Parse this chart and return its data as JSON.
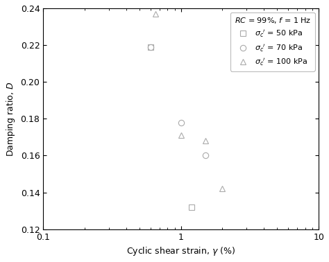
{
  "title": "",
  "xlabel": "Cyclic shear strain, $\\gamma$ (%)",
  "ylabel": "Damping ratio, $D$",
  "xlim": [
    0.1,
    10
  ],
  "ylim": [
    0.12,
    0.24
  ],
  "yticks": [
    0.12,
    0.14,
    0.16,
    0.18,
    0.2,
    0.22,
    0.24
  ],
  "legend_title": "$RC$ = 99%, $f$ = 1 Hz",
  "series": [
    {
      "label": "$\\sigma_c{}'$ = 50 kPa",
      "marker": "s",
      "x": [
        0.6,
        1.2
      ],
      "y": [
        0.219,
        0.132
      ]
    },
    {
      "label": "$\\sigma_c{}'$ = 70 kPa",
      "marker": "o",
      "x": [
        0.6,
        1.0,
        1.5
      ],
      "y": [
        0.219,
        0.178,
        0.16
      ]
    },
    {
      "label": "$\\sigma_c{}'$ = 100 kPa",
      "marker": "^",
      "x": [
        0.65,
        1.0,
        1.5,
        2.0
      ],
      "y": [
        0.237,
        0.171,
        0.168,
        0.142
      ]
    }
  ],
  "marker_color": "#aaaaaa",
  "marker_facecolor": "none",
  "marker_size": 6,
  "marker_linewidth": 0.8,
  "background_color": "#ffffff",
  "font_size": 9,
  "tick_labelsize": 9
}
